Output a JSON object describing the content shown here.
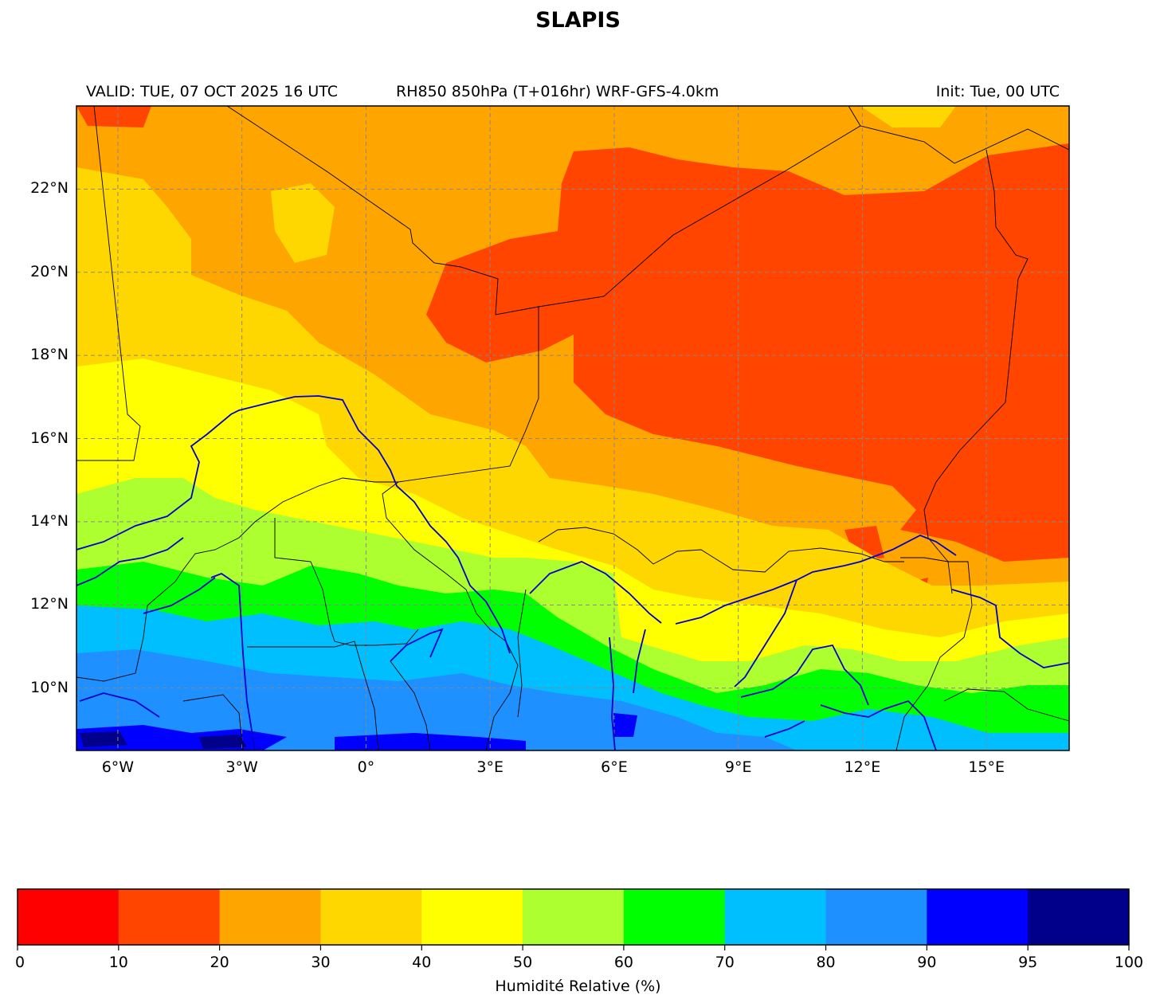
{
  "title": "SLAPIS",
  "header": {
    "valid": "VALID: TUE, 07 OCT 2025 16 UTC",
    "product": "RH850 850hPa (T+016hr) WRF-GFS-4.0km",
    "init": "Init: Tue, 00 UTC"
  },
  "map": {
    "lon_range": [
      -7,
      17
    ],
    "lat_range": [
      8.5,
      24
    ],
    "lon_ticks": [
      {
        "value": -6,
        "label": "6°W"
      },
      {
        "value": -3,
        "label": "3°W"
      },
      {
        "value": 0,
        "label": "0°"
      },
      {
        "value": 3,
        "label": "3°E"
      },
      {
        "value": 6,
        "label": "6°E"
      },
      {
        "value": 9,
        "label": "9°E"
      },
      {
        "value": 12,
        "label": "12°E"
      },
      {
        "value": 15,
        "label": "15°E"
      }
    ],
    "lat_ticks": [
      {
        "value": 22,
        "label": "22°N"
      },
      {
        "value": 20,
        "label": "20°N"
      },
      {
        "value": 18,
        "label": "18°N"
      },
      {
        "value": 16,
        "label": "16°N"
      },
      {
        "value": 14,
        "label": "14°N"
      },
      {
        "value": 12,
        "label": "12°N"
      },
      {
        "value": 10,
        "label": "10°N"
      }
    ],
    "gridlines": true,
    "border_color": "#000000",
    "river_color": "#0000cc"
  },
  "colorbar": {
    "label": "Humidité Relative (%)",
    "bins": [
      {
        "from": 0,
        "to": 10,
        "color": "#ff0000"
      },
      {
        "from": 10,
        "to": 20,
        "color": "#ff4500"
      },
      {
        "from": 20,
        "to": 30,
        "color": "#ffa500"
      },
      {
        "from": 30,
        "to": 40,
        "color": "#ffd700"
      },
      {
        "from": 40,
        "to": 50,
        "color": "#ffff00"
      },
      {
        "from": 50,
        "to": 60,
        "color": "#adff2f"
      },
      {
        "from": 60,
        "to": 70,
        "color": "#00ff00"
      },
      {
        "from": 70,
        "to": 80,
        "color": "#00bfff"
      },
      {
        "from": 80,
        "to": 90,
        "color": "#1e90ff"
      },
      {
        "from": 90,
        "to": 95,
        "color": "#0000ff"
      },
      {
        "from": 95,
        "to": 100,
        "color": "#00008b"
      }
    ],
    "tick_labels": [
      "0",
      "10",
      "20",
      "30",
      "40",
      "50",
      "60",
      "70",
      "80",
      "90",
      "95",
      "100"
    ]
  }
}
